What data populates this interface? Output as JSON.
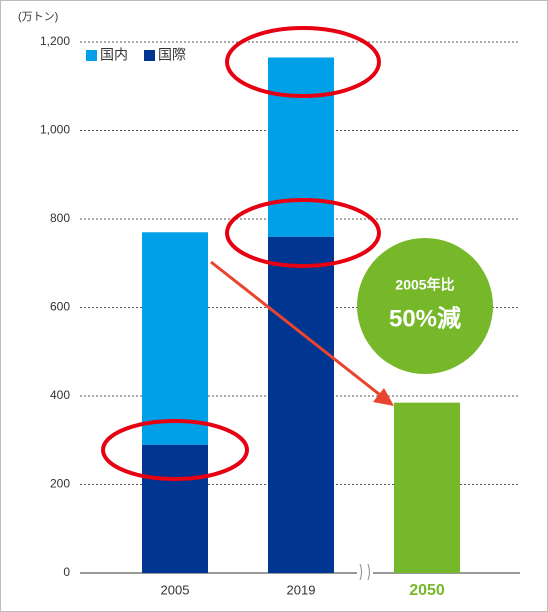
{
  "chart_data": {
    "type": "stacked_bar",
    "y_label": "(万トン)",
    "categories": [
      "2005",
      "2019",
      "2050"
    ],
    "series": [
      {
        "name": "国内",
        "color": "#00a0e9",
        "values": [
          480,
          405,
          null
        ]
      },
      {
        "name": "国際",
        "color": "#003591",
        "values": [
          290,
          760,
          null
        ]
      }
    ],
    "target_values": [
      null,
      null,
      385
    ],
    "target_color": "#76b82a",
    "annotation": [
      "2005年比",
      "50%減"
    ],
    "ylim": [
      0,
      1200
    ],
    "yticks": [
      0,
      200,
      400,
      600,
      800,
      {
        "value": 1000,
        "label": "1,000"
      },
      {
        "value": 1200,
        "label": "1,200"
      }
    ],
    "grid": true,
    "legend": "top-left"
  }
}
